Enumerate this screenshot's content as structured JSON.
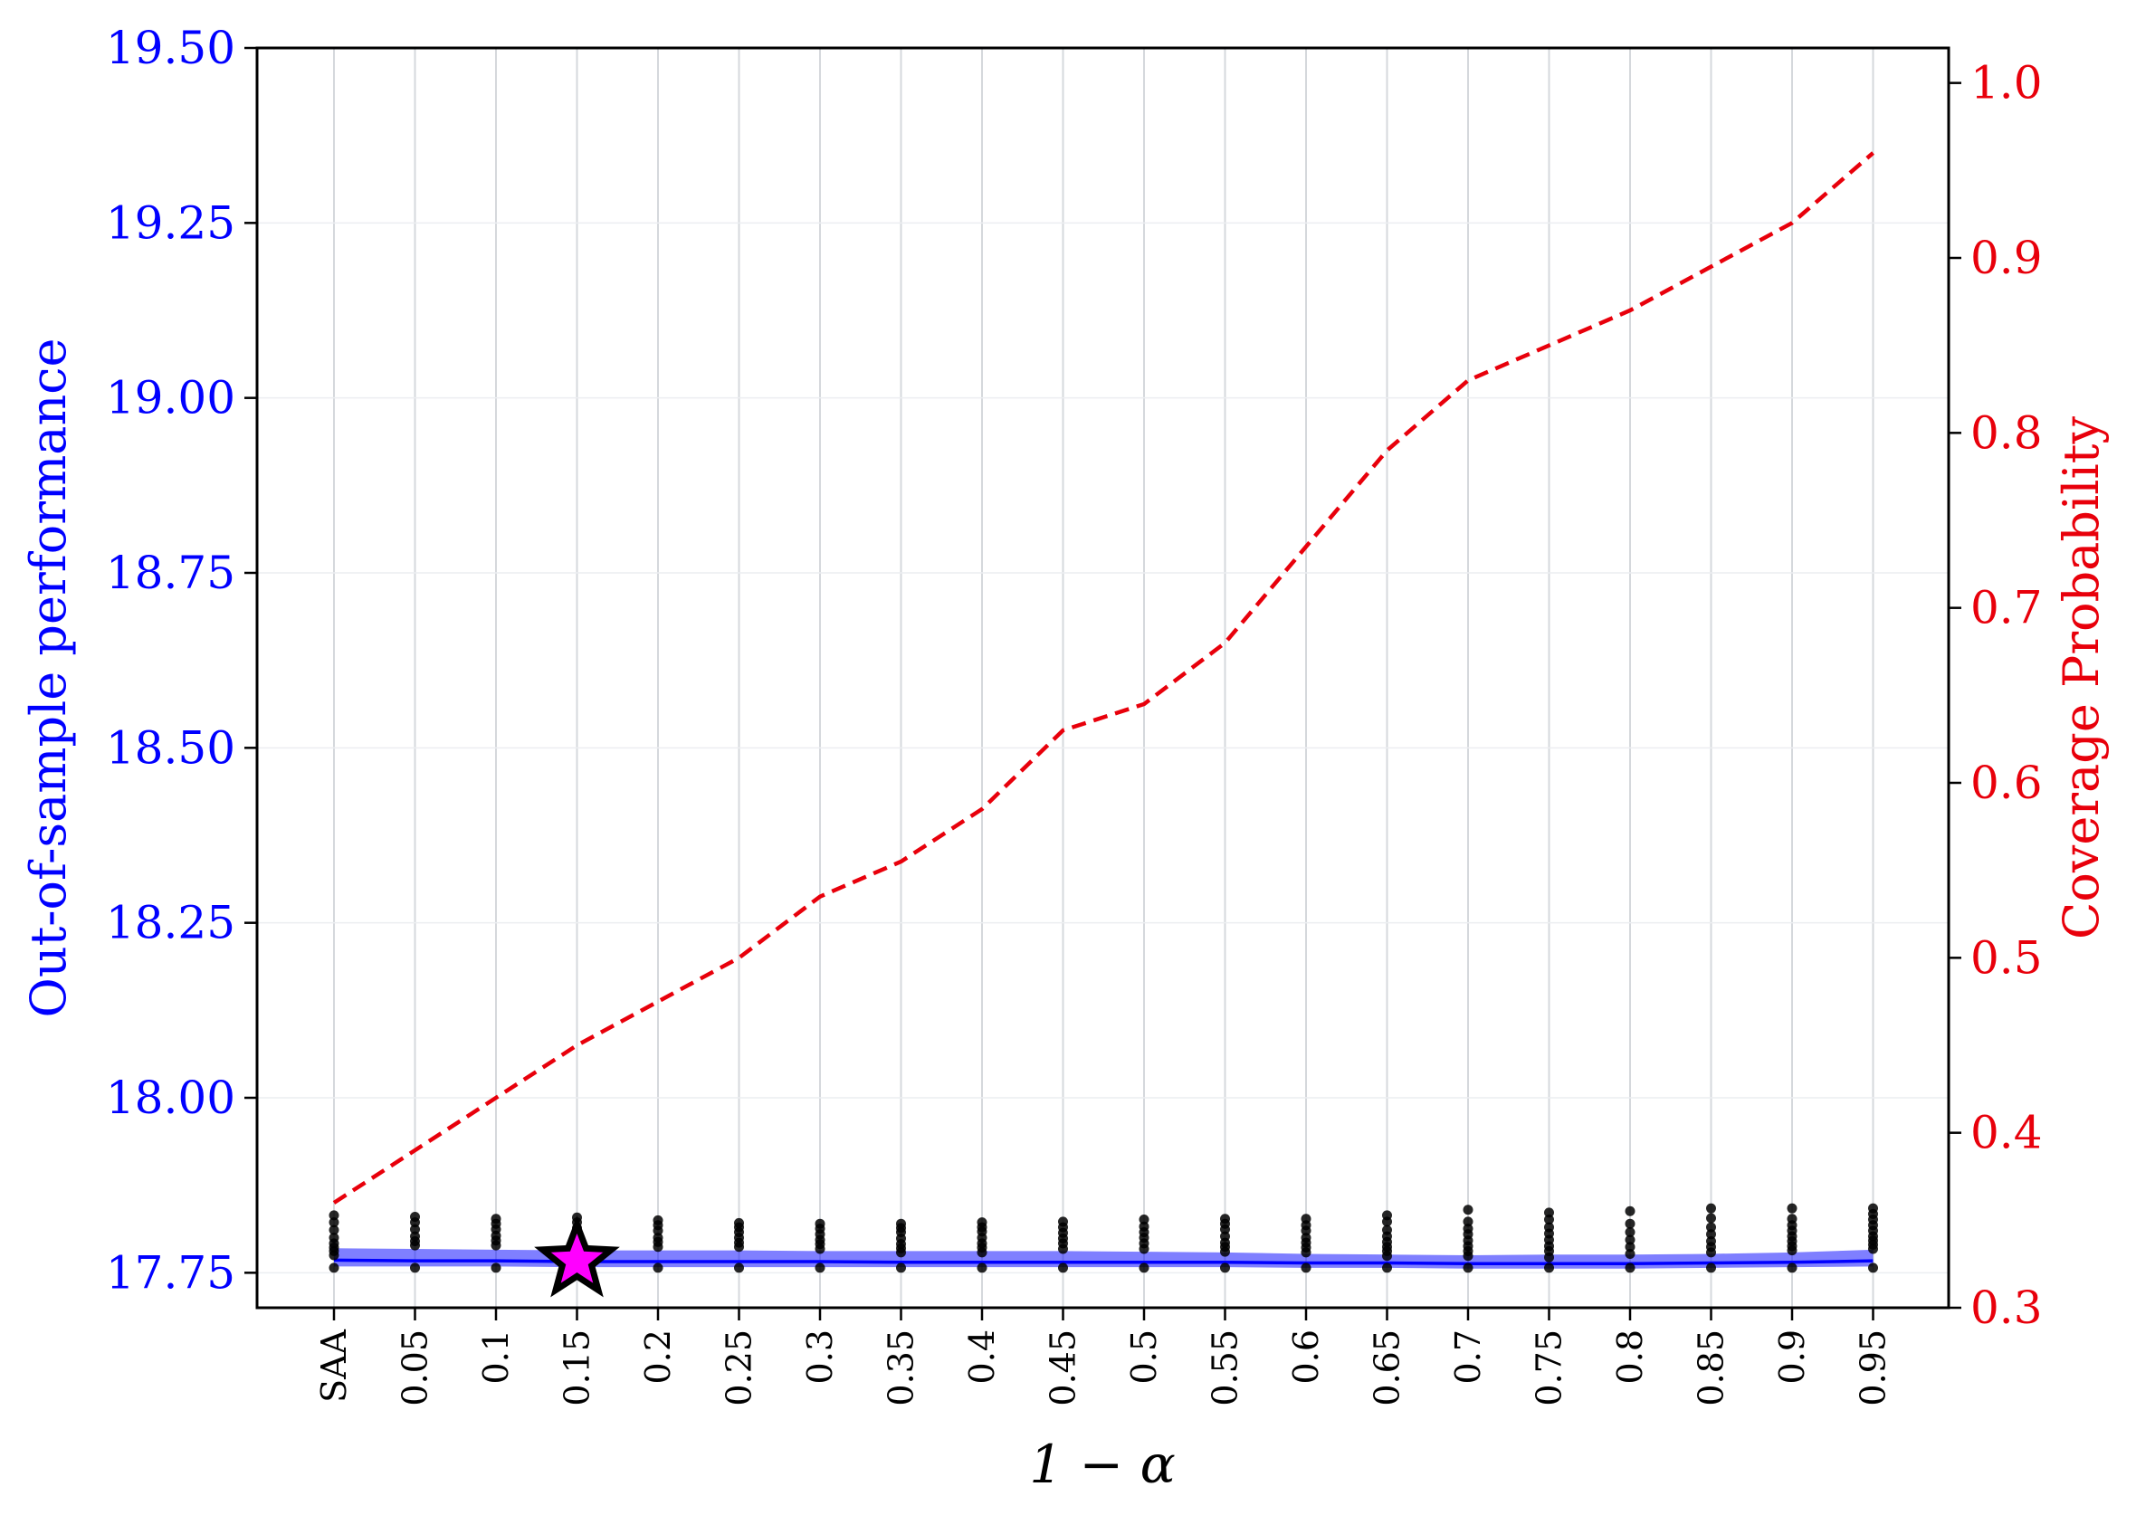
{
  "chart_data": {
    "type": "line",
    "xlabel": "1 − α",
    "ylabel": "Out-of-sample performance",
    "y2label": "Coverage Probability",
    "categories": [
      "SAA",
      "0.05",
      "0.1",
      "0.15",
      "0.2",
      "0.25",
      "0.3",
      "0.35",
      "0.4",
      "0.45",
      "0.5",
      "0.55",
      "0.6",
      "0.65",
      "0.7",
      "0.75",
      "0.8",
      "0.85",
      "0.9",
      "0.95"
    ],
    "ylim": [
      17.7,
      19.5
    ],
    "y2lim": [
      0.3,
      1.02
    ],
    "yticks": [
      "17.75",
      "18.00",
      "18.25",
      "18.50",
      "18.75",
      "19.00",
      "19.25",
      "19.50"
    ],
    "y2ticks": [
      "0.3",
      "0.4",
      "0.5",
      "0.6",
      "0.7",
      "0.8",
      "0.9",
      "1.0"
    ],
    "grid": true,
    "series": [
      {
        "axis": "left",
        "style": "solid",
        "color": "#0000ff",
        "values": [
          17.768,
          17.767,
          17.767,
          17.766,
          17.766,
          17.766,
          17.766,
          17.765,
          17.765,
          17.765,
          17.765,
          17.765,
          17.764,
          17.764,
          17.763,
          17.763,
          17.763,
          17.764,
          17.765,
          17.767
        ],
        "band_lower": [
          17.759,
          17.759,
          17.759,
          17.758,
          17.758,
          17.758,
          17.758,
          17.758,
          17.758,
          17.758,
          17.758,
          17.758,
          17.757,
          17.757,
          17.756,
          17.756,
          17.756,
          17.757,
          17.758,
          17.759
        ],
        "band_upper": [
          17.785,
          17.784,
          17.783,
          17.782,
          17.782,
          17.782,
          17.781,
          17.781,
          17.781,
          17.781,
          17.78,
          17.779,
          17.777,
          17.776,
          17.775,
          17.776,
          17.776,
          17.777,
          17.779,
          17.783
        ]
      },
      {
        "axis": "right",
        "style": "dashed",
        "color": "#e8000b",
        "values": [
          0.36,
          0.39,
          0.42,
          0.45,
          0.475,
          0.5,
          0.535,
          0.555,
          0.585,
          0.63,
          0.645,
          0.68,
          0.735,
          0.79,
          0.83,
          0.85,
          0.87,
          0.895,
          0.92,
          0.96
        ]
      }
    ],
    "scatter_points": [
      [
        17.757,
        17.775,
        17.781,
        17.786,
        17.792,
        17.8,
        17.811,
        17.822,
        17.832
      ],
      [
        17.757,
        17.789,
        17.795,
        17.802,
        17.812,
        17.822,
        17.83
      ],
      [
        17.757,
        17.789,
        17.796,
        17.803,
        17.812,
        17.82,
        17.827
      ],
      [
        17.757,
        17.776,
        17.79,
        17.797,
        17.806,
        17.814,
        17.822,
        17.829
      ],
      [
        17.757,
        17.787,
        17.794,
        17.8,
        17.81,
        17.818,
        17.825
      ],
      [
        17.757,
        17.787,
        17.793,
        17.8,
        17.808,
        17.815,
        17.821
      ],
      [
        17.757,
        17.784,
        17.791,
        17.797,
        17.805,
        17.813,
        17.82
      ],
      [
        17.757,
        17.779,
        17.785,
        17.791,
        17.799,
        17.808,
        17.814,
        17.82
      ],
      [
        17.757,
        17.779,
        17.786,
        17.792,
        17.8,
        17.809,
        17.815,
        17.822
      ],
      [
        17.757,
        17.784,
        17.792,
        17.799,
        17.807,
        17.815,
        17.823
      ],
      [
        17.757,
        17.784,
        17.792,
        17.8,
        17.808,
        17.816,
        17.826
      ],
      [
        17.757,
        17.78,
        17.787,
        17.793,
        17.802,
        17.812,
        17.82,
        17.827
      ],
      [
        17.757,
        17.779,
        17.786,
        17.793,
        17.8,
        17.81,
        17.818,
        17.827
      ],
      [
        17.757,
        17.774,
        17.781,
        17.787,
        17.794,
        17.802,
        17.811,
        17.823,
        17.832
      ],
      [
        17.757,
        17.774,
        17.781,
        17.788,
        17.796,
        17.805,
        17.813,
        17.823,
        17.84
      ],
      [
        17.757,
        17.772,
        17.781,
        17.788,
        17.797,
        17.806,
        17.815,
        17.826,
        17.836
      ],
      [
        17.757,
        17.777,
        17.787,
        17.797,
        17.808,
        17.82,
        17.838
      ],
      [
        17.757,
        17.779,
        17.787,
        17.795,
        17.805,
        17.815,
        17.828,
        17.842
      ],
      [
        17.757,
        17.782,
        17.788,
        17.795,
        17.802,
        17.81,
        17.818,
        17.827,
        17.842
      ],
      [
        17.757,
        17.784,
        17.79,
        17.796,
        17.802,
        17.81,
        17.818,
        17.826,
        17.834,
        17.842
      ]
    ],
    "star_marker": {
      "category": "0.15",
      "value": 17.767,
      "fill": "#ff00ff"
    }
  }
}
